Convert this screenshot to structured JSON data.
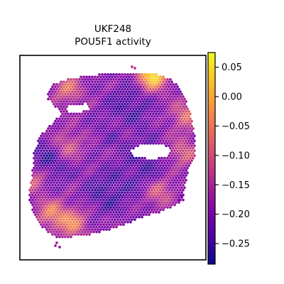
{
  "chart_data": {
    "type": "heatmap",
    "title_lines": [
      "UKF248",
      "POU5F1 activity"
    ],
    "xlabel": "",
    "ylabel": "",
    "grid": false,
    "colormap": "plasma",
    "colorbar": {
      "position": "right",
      "range": [
        -0.285,
        0.075
      ],
      "ticks": [
        0.05,
        0.0,
        -0.05,
        -0.1,
        -0.15,
        -0.2,
        -0.25
      ],
      "tick_labels": [
        "0.05",
        "0.00",
        "−0.05",
        "−0.10",
        "−0.15",
        "−0.20",
        "−0.25"
      ]
    },
    "spot_values": {
      "background": -0.19,
      "hotspots": [
        {
          "region": "upper-left lobe",
          "value": -0.08
        },
        {
          "region": "top edge right",
          "value": 0.07
        },
        {
          "region": "left edge",
          "value": -0.06
        },
        {
          "region": "upper-right edge",
          "value": -0.08
        },
        {
          "region": "center-left",
          "value": -0.1
        },
        {
          "region": "center",
          "value": -0.12
        },
        {
          "region": "lower-left",
          "value": -0.06
        },
        {
          "region": "bottom center",
          "value": -0.05
        },
        {
          "region": "lower-right",
          "value": -0.09
        },
        {
          "region": "right flank",
          "value": -0.1
        }
      ],
      "coldspots": [
        {
          "region": "left-center",
          "value": -0.27
        },
        {
          "region": "center",
          "value": -0.26
        },
        {
          "region": "lower-center",
          "value": -0.25
        },
        {
          "region": "right-center",
          "value": -0.24
        },
        {
          "region": "upper-center",
          "value": -0.23
        }
      ]
    }
  }
}
